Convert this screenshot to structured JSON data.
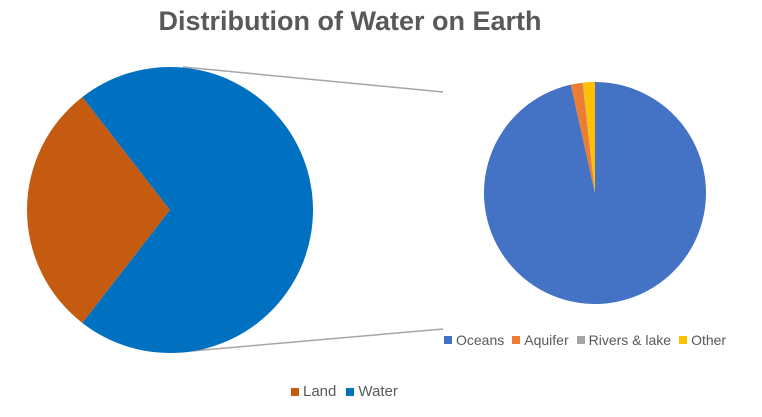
{
  "chart_data": [
    {
      "type": "pie",
      "title": "Distribution of Water on Earth",
      "categories": [
        "Land",
        "Water"
      ],
      "values": [
        29,
        71
      ],
      "colors": [
        "#C55A11",
        "#0070C0"
      ],
      "legend_position": "bottom"
    },
    {
      "type": "pie",
      "title": "",
      "categories": [
        "Oceans",
        "Aquifer",
        "Rivers & lake",
        "Other"
      ],
      "values": [
        96.5,
        1.7,
        0.1,
        1.7
      ],
      "colors": [
        "#4472C4",
        "#ED7D31",
        "#A5A5A5",
        "#FFC000"
      ],
      "legend_position": "bottom"
    }
  ]
}
